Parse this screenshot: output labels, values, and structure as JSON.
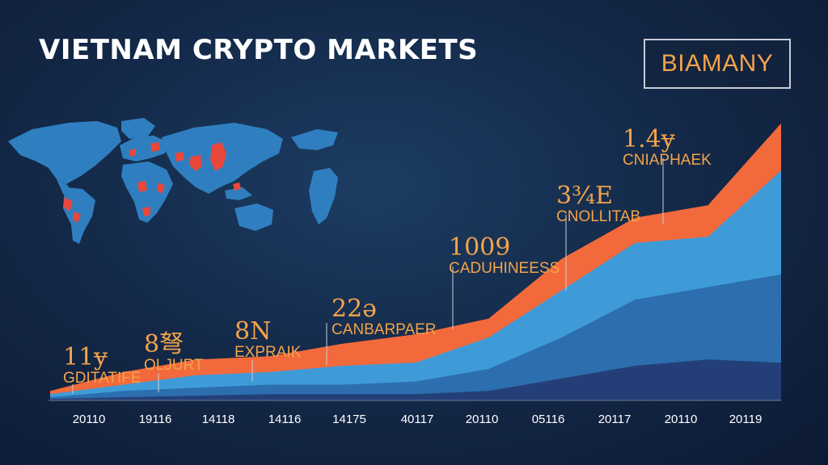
{
  "title": "VIETNAM CRYPTO MARKETS",
  "brand": "BIAMANY",
  "colors": {
    "accent_orange": "#f26a3c",
    "series_light": "#3f9ad8",
    "series_mid": "#2c6eae",
    "series_dark": "#243f78",
    "label": "#f4a34a",
    "map_land": "#2f7fc0",
    "map_highlight": "#e9473a"
  },
  "map": {
    "icon": "world-map-icon"
  },
  "chart_data": {
    "type": "area",
    "title": "VIETNAM CRYPTO MARKETS",
    "xlabel": "",
    "ylabel": "",
    "categories": [
      "20110",
      "19116",
      "14118",
      "14116",
      "14175",
      "40117",
      "20110",
      "05116",
      "20117",
      "20110",
      "20119"
    ],
    "ylim": [
      0,
      100
    ],
    "series": [
      {
        "values": [
          3,
          9,
          13,
          14,
          18,
          21,
          26,
          45,
          58,
          62,
          88
        ]
      },
      {
        "values": [
          2,
          5,
          8,
          9,
          11,
          12,
          20,
          35,
          50,
          52,
          73
        ]
      },
      {
        "values": [
          1,
          3,
          4,
          5,
          5,
          6,
          10,
          20,
          32,
          36,
          40
        ]
      },
      {
        "values": [
          0.5,
          1,
          1.5,
          2,
          2,
          2,
          3,
          7,
          11,
          13,
          12
        ]
      }
    ],
    "annotations": [
      {
        "value": "11ɏ",
        "label": "GDITATIFE"
      },
      {
        "value": "8弩",
        "label": "OLJURT"
      },
      {
        "value": "8N",
        "label": "EXPRAIK"
      },
      {
        "value": "22ǝ",
        "label": "CANBARPAER"
      },
      {
        "value": "1009",
        "label": "CADUHINEESS"
      },
      {
        "value": "3¾E",
        "label": "CNOLLITAB"
      },
      {
        "value": "1.4ɏ",
        "label": "CNIAPHAEK"
      }
    ],
    "legend": "none",
    "grid": false
  }
}
